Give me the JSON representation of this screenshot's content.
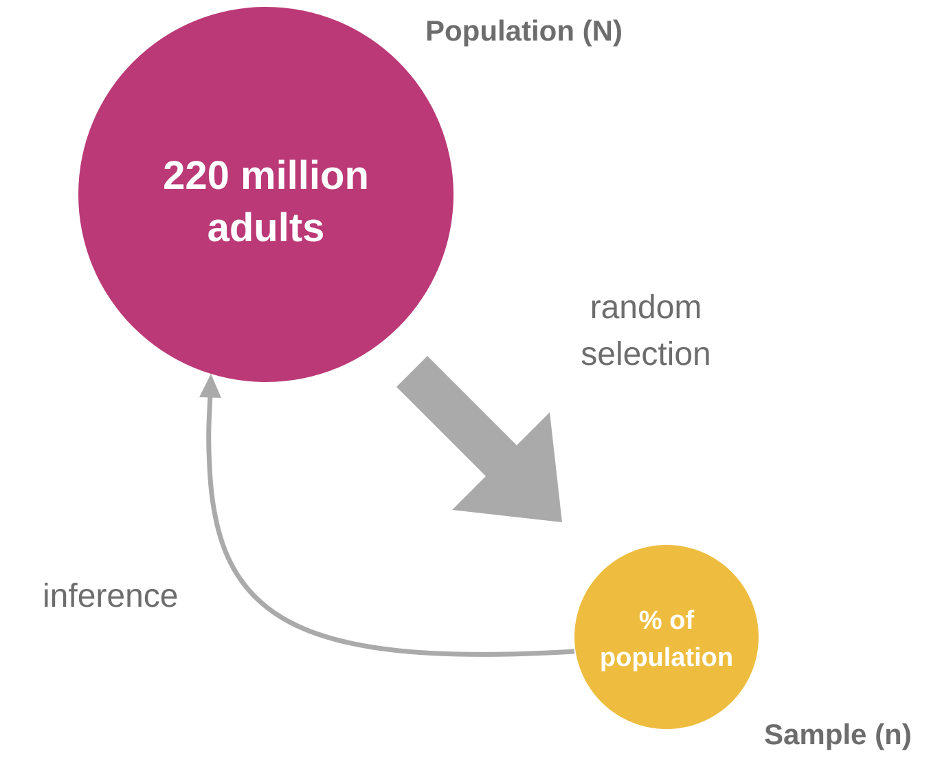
{
  "population": {
    "title": "Population (N)",
    "circle_line1": "220 million",
    "circle_line2": "adults",
    "color": "#bb3977"
  },
  "sample": {
    "title": "Sample (n)",
    "circle_line1": "% of",
    "circle_line2": "population",
    "color": "#eebd3f"
  },
  "selection": {
    "line1": "random",
    "line2": "selection",
    "arrow_color": "#aaaaaa"
  },
  "inference": {
    "label": "inference",
    "arrow_color": "#aaaaaa"
  }
}
